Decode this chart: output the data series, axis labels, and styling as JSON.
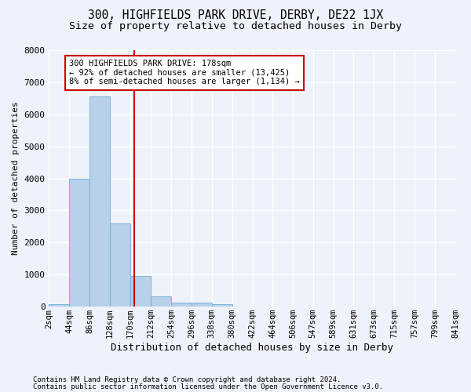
{
  "title": "300, HIGHFIELDS PARK DRIVE, DERBY, DE22 1JX",
  "subtitle": "Size of property relative to detached houses in Derby",
  "xlabel": "Distribution of detached houses by size in Derby",
  "ylabel": "Number of detached properties",
  "footer_line1": "Contains HM Land Registry data © Crown copyright and database right 2024.",
  "footer_line2": "Contains public sector information licensed under the Open Government Licence v3.0.",
  "property_size": 178,
  "annotation_line1": "300 HIGHFIELDS PARK DRIVE: 178sqm",
  "annotation_line2": "← 92% of detached houses are smaller (13,425)",
  "annotation_line3": "8% of semi-detached houses are larger (1,134) →",
  "bar_edges": [
    2,
    44,
    86,
    128,
    170,
    212,
    254,
    296,
    338,
    380,
    422,
    464,
    506,
    547,
    589,
    631,
    673,
    715,
    757,
    799,
    841
  ],
  "bar_heights": [
    80,
    4000,
    6550,
    2600,
    950,
    320,
    130,
    120,
    80,
    0,
    0,
    0,
    0,
    0,
    0,
    0,
    0,
    0,
    0,
    0
  ],
  "bar_color": "#b8d0ea",
  "bar_edge_color": "#6aaed6",
  "vline_color": "#cc0000",
  "vline_x": 178,
  "ylim": [
    0,
    8000
  ],
  "bg_color": "#eef2fa",
  "plot_bg_color": "#eef2fa",
  "grid_color": "#ffffff",
  "annotation_box_color": "#cc0000",
  "title_fontsize": 10.5,
  "subtitle_fontsize": 9.5,
  "xlabel_fontsize": 9,
  "ylabel_fontsize": 8,
  "tick_fontsize": 7.5,
  "annotation_fontsize": 7.5
}
